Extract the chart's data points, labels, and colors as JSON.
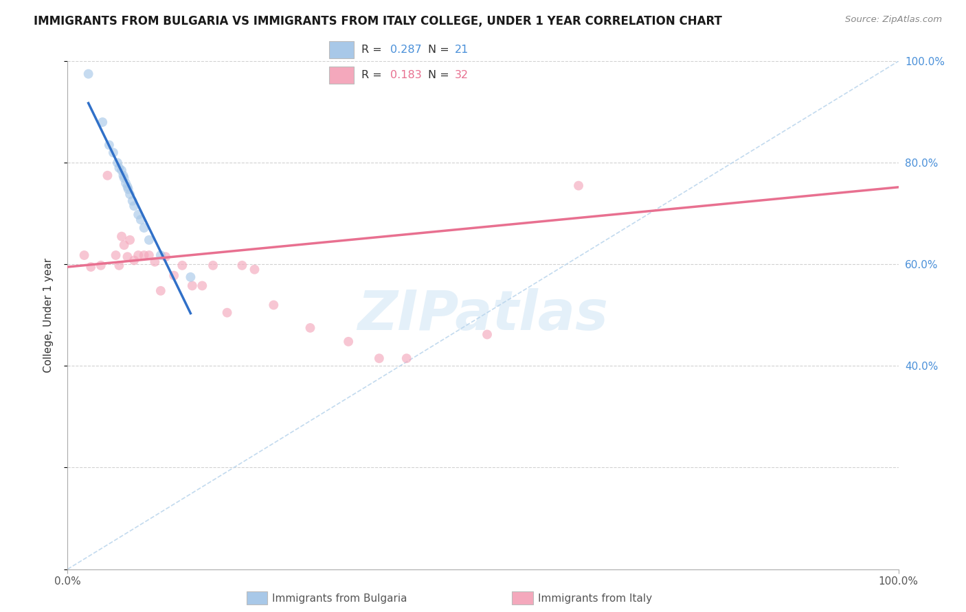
{
  "title": "IMMIGRANTS FROM BULGARIA VS IMMIGRANTS FROM ITALY COLLEGE, UNDER 1 YEAR CORRELATION CHART",
  "source_text": "Source: ZipAtlas.com",
  "ylabel": "College, Under 1 year",
  "xlim": [
    0,
    1
  ],
  "ylim": [
    0,
    1
  ],
  "bulgaria_R": 0.287,
  "bulgaria_N": 21,
  "italy_R": 0.183,
  "italy_N": 32,
  "bulgaria_color": "#a8c8e8",
  "italy_color": "#f4a8bc",
  "bulgaria_line_color": "#3070c8",
  "italy_line_color": "#e87090",
  "diagonal_color": "#b8d4ec",
  "watermark": "ZIPatlas",
  "bg_color": "#ffffff",
  "grid_color": "#cccccc",
  "scatter_alpha": 0.65,
  "scatter_size": 100,
  "bulgaria_x": [
    0.025,
    0.042,
    0.05,
    0.055,
    0.06,
    0.062,
    0.065,
    0.067,
    0.068,
    0.07,
    0.072,
    0.073,
    0.075,
    0.078,
    0.08,
    0.085,
    0.088,
    0.092,
    0.098,
    0.112,
    0.148
  ],
  "bulgaria_y": [
    0.975,
    0.88,
    0.835,
    0.82,
    0.8,
    0.79,
    0.785,
    0.775,
    0.77,
    0.76,
    0.753,
    0.748,
    0.738,
    0.725,
    0.715,
    0.698,
    0.688,
    0.672,
    0.648,
    0.618,
    0.575
  ],
  "italy_x": [
    0.02,
    0.028,
    0.04,
    0.048,
    0.058,
    0.062,
    0.065,
    0.068,
    0.072,
    0.075,
    0.08,
    0.085,
    0.092,
    0.098,
    0.105,
    0.112,
    0.118,
    0.128,
    0.138,
    0.15,
    0.162,
    0.175,
    0.192,
    0.21,
    0.225,
    0.248,
    0.292,
    0.338,
    0.375,
    0.408,
    0.505,
    0.615
  ],
  "italy_y": [
    0.618,
    0.595,
    0.598,
    0.775,
    0.618,
    0.598,
    0.655,
    0.638,
    0.615,
    0.648,
    0.608,
    0.618,
    0.618,
    0.618,
    0.605,
    0.548,
    0.615,
    0.578,
    0.598,
    0.558,
    0.558,
    0.598,
    0.505,
    0.598,
    0.59,
    0.52,
    0.475,
    0.448,
    0.415,
    0.415,
    0.462,
    0.755
  ],
  "italy_line_x0": 0.0,
  "italy_line_x1": 1.0,
  "italy_line_y0": 0.595,
  "italy_line_y1": 0.752
}
